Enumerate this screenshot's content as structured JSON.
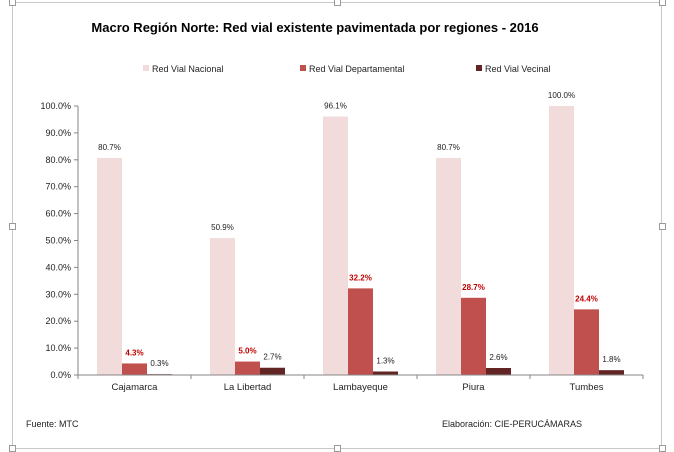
{
  "chart_data": {
    "type": "bar",
    "title": "Macro Región Norte:  Red vial existente pavimentada por regiones - 2016",
    "categories": [
      "Cajamarca",
      "La Libertad",
      "Lambayeque",
      "Piura",
      "Tumbes"
    ],
    "series": [
      {
        "name": "Red Vial Nacional",
        "color": "#f2dcdb",
        "label_color": "#222222",
        "values": [
          80.7,
          50.9,
          96.1,
          80.7,
          100.0
        ],
        "labels": [
          "80.7%",
          "50.9%",
          "96.1%",
          "80.7%",
          "100.0%"
        ]
      },
      {
        "name": "Red Vial Departamental",
        "color": "#c0504d",
        "label_color": "#c00000",
        "values": [
          4.3,
          5.0,
          32.2,
          28.7,
          24.4
        ],
        "labels": [
          "4.3%",
          "5.0%",
          "32.2%",
          "28.7%",
          "24.4%"
        ]
      },
      {
        "name": "Red Vial Vecinal",
        "color": "#632523",
        "label_color": "#222222",
        "values": [
          0.3,
          2.7,
          1.3,
          2.6,
          1.8
        ],
        "labels": [
          "0.3%",
          "2.7%",
          "1.3%",
          "2.6%",
          "1.8%"
        ]
      }
    ],
    "ylim": [
      0,
      100
    ],
    "yticks": [
      0,
      10,
      20,
      30,
      40,
      50,
      60,
      70,
      80,
      90,
      100
    ],
    "ytick_labels": [
      "0.0%",
      "10.0%",
      "20.0%",
      "30.0%",
      "40.0%",
      "50.0%",
      "60.0%",
      "70.0%",
      "80.0%",
      "90.0%",
      "100.0%"
    ],
    "xlabel": "",
    "ylabel": "",
    "grid": false,
    "legend_position": "top"
  },
  "footer": {
    "source": "Fuente: MTC",
    "credit": "Elaboración: CIE-PERUCÁMARAS"
  }
}
